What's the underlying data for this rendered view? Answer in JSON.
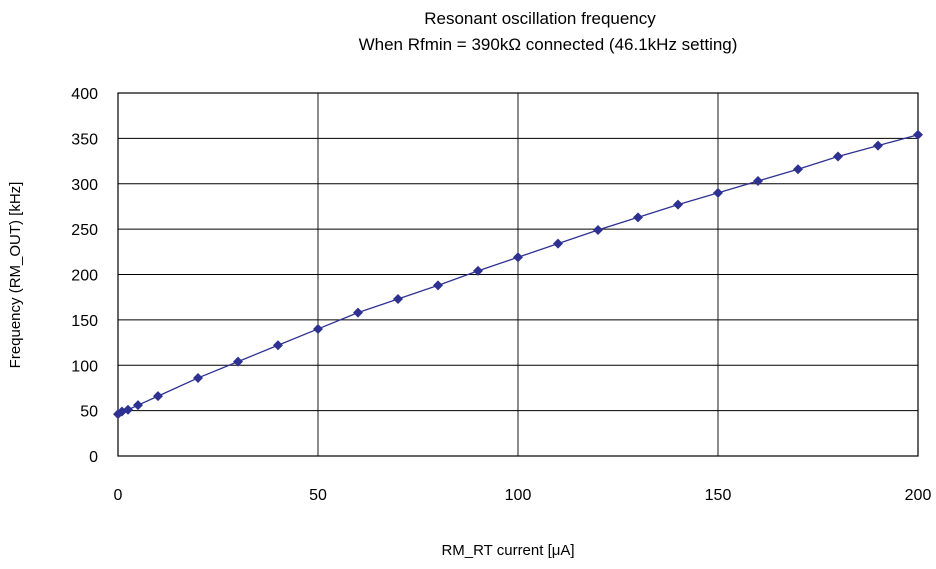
{
  "chart_data": {
    "type": "line",
    "title": "Resonant oscillation frequency",
    "subtitle": "When Rfmin = 390kΩ connected (46.1kHz setting)",
    "xlabel": "RM_RT current [μA]",
    "ylabel": "Frequency (RM_OUT) [kHz]",
    "xlim": [
      0,
      200
    ],
    "ylim": [
      0,
      400
    ],
    "x_ticks": [
      "0",
      "50",
      "100",
      "150",
      "200"
    ],
    "y_ticks": [
      "0",
      "50",
      "100",
      "150",
      "200",
      "250",
      "300",
      "350",
      "400"
    ],
    "grid": true,
    "series": [
      {
        "marker": "diamond",
        "color": "#2e3192",
        "x": [
          0,
          1,
          2.5,
          5,
          10,
          20,
          30,
          40,
          50,
          60,
          70,
          80,
          90,
          100,
          110,
          120,
          130,
          140,
          150,
          160,
          170,
          180,
          190,
          200
        ],
        "y": [
          46.1,
          49,
          51,
          56,
          66,
          86,
          104,
          122,
          140,
          158,
          173,
          188,
          204,
          219,
          234,
          249,
          263,
          277,
          290,
          303,
          316,
          330,
          342,
          354
        ]
      }
    ]
  }
}
